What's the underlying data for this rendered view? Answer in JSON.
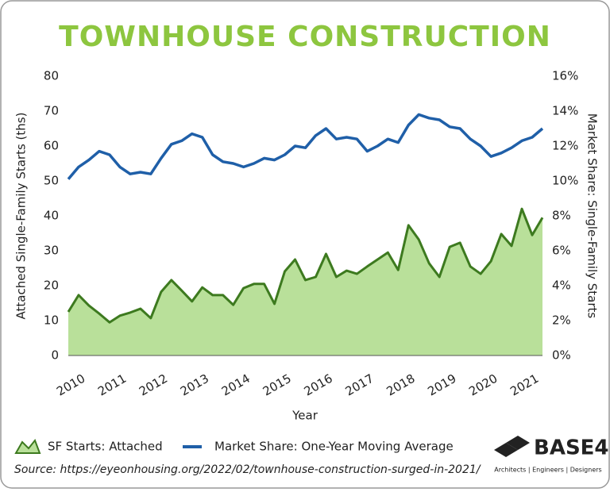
{
  "chart_data": {
    "type": "combo",
    "title": "TOWNHOUSE CONSTRUCTION",
    "x_label": "Year",
    "y_label": "Attached Single-Family Starts (ths)",
    "y2_label": "Market Share: Single-Family Starts",
    "x": [
      2010,
      2010.25,
      2010.5,
      2010.75,
      2011,
      2011.25,
      2011.5,
      2011.75,
      2012,
      2012.25,
      2012.5,
      2012.75,
      2013,
      2013.25,
      2013.5,
      2013.75,
      2014,
      2014.25,
      2014.5,
      2014.75,
      2015,
      2015.25,
      2015.5,
      2015.75,
      2016,
      2016.25,
      2016.5,
      2016.75,
      2017,
      2017.25,
      2017.5,
      2017.75,
      2018,
      2018.25,
      2018.5,
      2018.75,
      2019,
      2019.25,
      2019.5,
      2019.75,
      2020,
      2020.25,
      2020.5,
      2020.75,
      2021,
      2021.25,
      2021.5
    ],
    "xlim": [
      2010,
      2021.5
    ],
    "xticks": [
      2010,
      2011,
      2012,
      2013,
      2014,
      2015,
      2016,
      2017,
      2018,
      2019,
      2020,
      2021
    ],
    "ylim": [
      0,
      80
    ],
    "yticks": [
      0,
      10,
      20,
      30,
      40,
      50,
      60,
      70,
      80
    ],
    "y2lim": [
      0,
      16
    ],
    "y2ticks": [
      {
        "value": 0,
        "label": "0%"
      },
      {
        "value": 2,
        "label": "2%"
      },
      {
        "value": 4,
        "label": "4%"
      },
      {
        "value": 6,
        "label": "6%"
      },
      {
        "value": 8,
        "label": "8%"
      },
      {
        "value": 10,
        "label": "10%"
      },
      {
        "value": 12,
        "label": "12%"
      },
      {
        "value": 14,
        "label": "14%"
      },
      {
        "value": 16,
        "label": "16%"
      }
    ],
    "series": [
      {
        "name": "SF Starts: Attached",
        "type": "area",
        "color": "#b9e09a",
        "line_color": "#3d7a1f",
        "values": [
          12.5,
          17.3,
          14.3,
          12,
          9.5,
          11.4,
          12.3,
          13.4,
          10.7,
          18.2,
          21.6,
          18.6,
          15.5,
          19.5,
          17.3,
          17.3,
          14.5,
          19.3,
          20.5,
          20.5,
          14.8,
          24.1,
          27.5,
          21.6,
          22.5,
          29.1,
          22.5,
          24.3,
          23.4,
          25.5,
          27.5,
          29.5,
          24.5,
          37.3,
          33.2,
          26.4,
          22.5,
          31.1,
          32.3,
          25.5,
          23.4,
          27,
          34.8,
          31.4,
          42,
          34.5,
          39.5
        ]
      },
      {
        "name": "Market Share: One-Year Moving Average",
        "type": "line",
        "axis": "y2",
        "color": "#1f5fa8",
        "values": [
          10.1,
          10.8,
          11.2,
          11.7,
          11.5,
          10.8,
          10.4,
          10.5,
          10.4,
          11.3,
          12.1,
          12.3,
          12.7,
          12.5,
          11.5,
          11.1,
          11,
          10.8,
          11,
          11.3,
          11.2,
          11.5,
          12,
          11.9,
          12.6,
          13,
          12.4,
          12.5,
          12.4,
          11.7,
          12,
          12.4,
          12.2,
          13.2,
          13.8,
          13.6,
          13.5,
          13.1,
          13,
          12.4,
          12,
          11.4,
          11.6,
          11.9,
          12.3,
          12.5,
          13
        ]
      }
    ],
    "source": "Source: https://eyeonhousing.org/2022/02/townhouse-construction-surged-in-2021/",
    "logo": {
      "name": "BASE4",
      "tagline": "Architects | Engineers | Designers"
    }
  }
}
